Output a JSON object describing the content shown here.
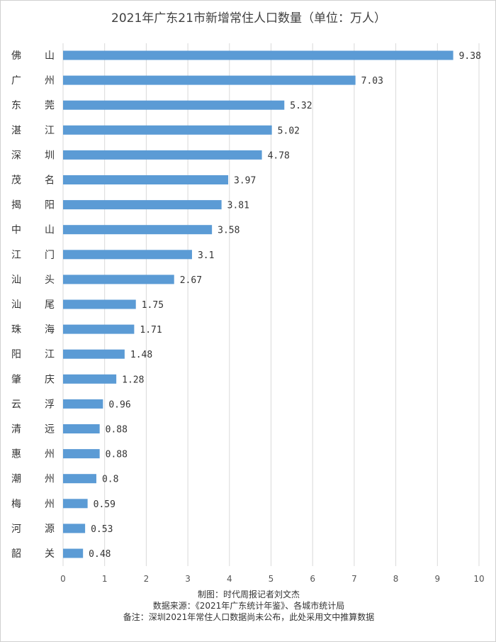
{
  "chart_data": {
    "type": "bar",
    "orientation": "horizontal",
    "title": "2021年广东21市新增常住人口数量（单位：万人）",
    "categories": [
      "佛山",
      "广州",
      "东莞",
      "湛江",
      "深圳",
      "茂名",
      "揭阳",
      "中山",
      "江门",
      "汕头",
      "汕尾",
      "珠海",
      "阳江",
      "肇庆",
      "云浮",
      "清远",
      "惠州",
      "潮州",
      "梅州",
      "河源",
      "韶关"
    ],
    "values": [
      9.38,
      7.03,
      5.32,
      5.02,
      4.78,
      3.97,
      3.81,
      3.58,
      3.1,
      2.67,
      1.75,
      1.71,
      1.48,
      1.28,
      0.96,
      0.88,
      0.88,
      0.8,
      0.59,
      0.53,
      0.48
    ],
    "xlim": [
      0,
      10
    ],
    "xticks": [
      0,
      1,
      2,
      3,
      4,
      5,
      6,
      7,
      8,
      9,
      10
    ],
    "grid": true,
    "data_labels": true,
    "bar_color": "#5b9bd5"
  },
  "notes": {
    "line1": "制图：时代周报记者刘文杰",
    "line2": "数据来源：《2021年广东统计年鉴》、各城市统计局",
    "line3": "备注：深圳2021年常住人口数据尚未公布，此处采用文中推算数据"
  }
}
